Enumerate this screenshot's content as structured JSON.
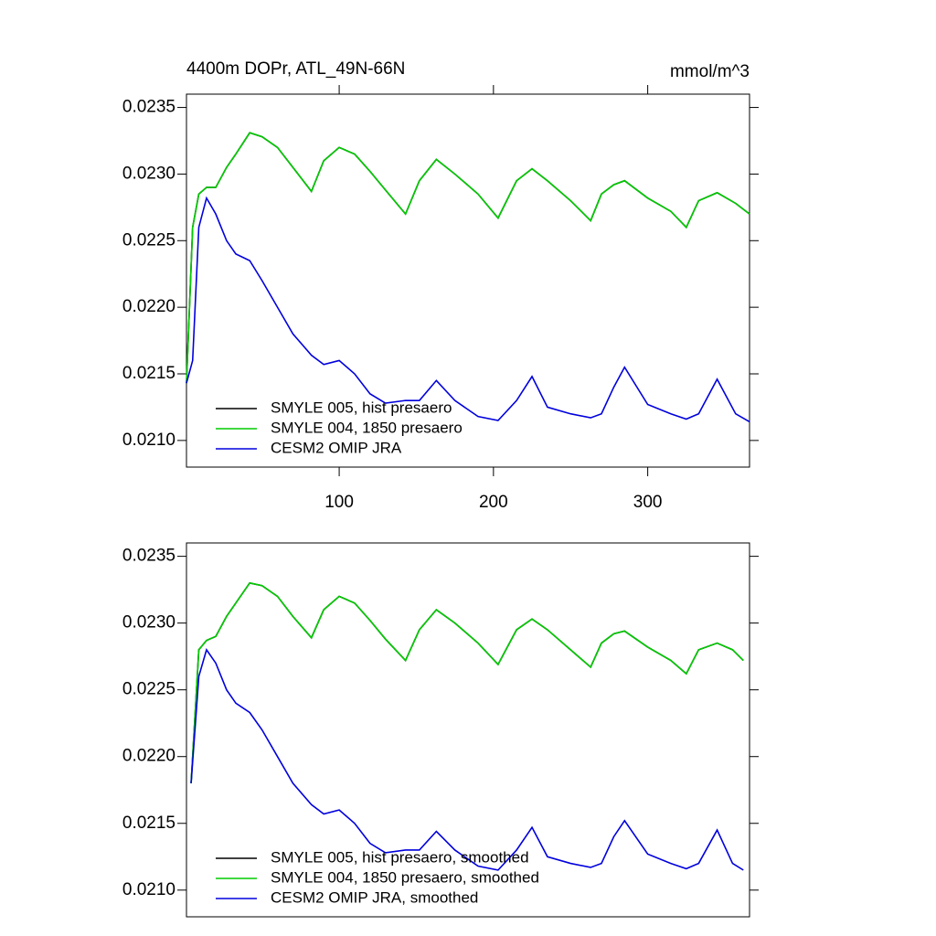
{
  "chart_data": [
    {
      "type": "line",
      "title": "4400m DOPr, ATL_49N-66N",
      "subtitle": "mmol/m^3",
      "x": [
        1,
        5,
        9,
        14,
        20,
        27,
        33,
        42,
        50,
        60,
        70,
        82,
        90,
        100,
        110,
        120,
        130,
        143,
        152,
        163,
        175,
        190,
        203,
        215,
        225,
        235,
        250,
        263,
        270,
        278,
        285,
        300,
        315,
        325,
        333,
        345,
        357,
        366
      ],
      "series": [
        {
          "name": "SMYLE 005, hist presaero",
          "color": "#000000",
          "values": [
            0.02143,
            0.0226,
            0.02285,
            0.0229,
            0.0229,
            0.02305,
            0.02315,
            0.02331,
            0.02328,
            0.0232,
            0.02305,
            0.02287,
            0.0231,
            0.0232,
            0.02315,
            0.02302,
            0.02288,
            0.0227,
            0.02295,
            0.02311,
            0.023,
            0.02285,
            0.02267,
            0.02295,
            0.02304,
            0.02295,
            0.0228,
            0.02265,
            0.02285,
            0.02292,
            0.02295,
            0.02282,
            0.02272,
            0.0226,
            0.0228,
            0.02286,
            0.02278,
            0.0227
          ]
        },
        {
          "name": "SMYLE 004, 1850 presaero",
          "color": "#00cc00",
          "values": [
            0.02143,
            0.0226,
            0.02285,
            0.0229,
            0.0229,
            0.02305,
            0.02315,
            0.02331,
            0.02328,
            0.0232,
            0.02305,
            0.02287,
            0.0231,
            0.0232,
            0.02315,
            0.02302,
            0.02288,
            0.0227,
            0.02295,
            0.02311,
            0.023,
            0.02285,
            0.02267,
            0.02295,
            0.02304,
            0.02295,
            0.0228,
            0.02265,
            0.02285,
            0.02292,
            0.02295,
            0.02282,
            0.02272,
            0.0226,
            0.0228,
            0.02286,
            0.02278,
            0.0227
          ]
        },
        {
          "name": "CESM2 OMIP JRA",
          "color": "#0000dd",
          "values": [
            0.02143,
            0.0216,
            0.0226,
            0.02282,
            0.0227,
            0.0225,
            0.0224,
            0.02235,
            0.0222,
            0.022,
            0.0218,
            0.02164,
            0.02157,
            0.0216,
            0.0215,
            0.02135,
            0.02128,
            0.0213,
            0.0213,
            0.02145,
            0.0213,
            0.02118,
            0.02115,
            0.0213,
            0.02148,
            0.02125,
            0.0212,
            0.02117,
            0.0212,
            0.0214,
            0.02155,
            0.02127,
            0.0212,
            0.02116,
            0.0212,
            0.02146,
            0.0212,
            0.02114
          ]
        }
      ],
      "xlim": [
        1,
        366
      ],
      "xticks": [
        100,
        200,
        300
      ],
      "ylim": [
        0.0208,
        0.0236
      ],
      "yticks": [
        0.0235,
        {
          "value": 0.023,
          "label": "0.0230"
        },
        0.0225,
        {
          "value": 0.022,
          "label": "0.0220"
        },
        0.0215,
        {
          "value": 0.021,
          "label": "0.0210"
        }
      ],
      "legend": "lower left"
    },
    {
      "type": "line",
      "x": [
        4,
        9,
        14,
        20,
        27,
        33,
        42,
        50,
        60,
        70,
        82,
        90,
        100,
        110,
        120,
        130,
        143,
        152,
        163,
        175,
        190,
        203,
        215,
        225,
        235,
        250,
        263,
        270,
        278,
        285,
        300,
        315,
        325,
        333,
        345,
        355,
        362
      ],
      "series": [
        {
          "name": "SMYLE 005, hist presaero, smoothed",
          "color": "#000000",
          "values": [
            0.0218,
            0.0228,
            0.02287,
            0.0229,
            0.02305,
            0.02315,
            0.0233,
            0.02328,
            0.0232,
            0.02305,
            0.02289,
            0.0231,
            0.0232,
            0.02315,
            0.02302,
            0.02288,
            0.02272,
            0.02295,
            0.0231,
            0.023,
            0.02285,
            0.02269,
            0.02295,
            0.02303,
            0.02295,
            0.0228,
            0.02267,
            0.02285,
            0.02292,
            0.02294,
            0.02282,
            0.02272,
            0.02262,
            0.0228,
            0.02285,
            0.0228,
            0.02272
          ]
        },
        {
          "name": "SMYLE 004, 1850 presaero, smoothed",
          "color": "#00cc00",
          "values": [
            0.0218,
            0.0228,
            0.02287,
            0.0229,
            0.02305,
            0.02315,
            0.0233,
            0.02328,
            0.0232,
            0.02305,
            0.02289,
            0.0231,
            0.0232,
            0.02315,
            0.02302,
            0.02288,
            0.02272,
            0.02295,
            0.0231,
            0.023,
            0.02285,
            0.02269,
            0.02295,
            0.02303,
            0.02295,
            0.0228,
            0.02267,
            0.02285,
            0.02292,
            0.02294,
            0.02282,
            0.02272,
            0.02262,
            0.0228,
            0.02285,
            0.0228,
            0.02272
          ]
        },
        {
          "name": "CESM2 OMIP JRA, smoothed",
          "color": "#0000dd",
          "values": [
            0.0218,
            0.0226,
            0.0228,
            0.0227,
            0.0225,
            0.0224,
            0.02233,
            0.0222,
            0.022,
            0.0218,
            0.02164,
            0.02157,
            0.0216,
            0.0215,
            0.02135,
            0.02128,
            0.0213,
            0.0213,
            0.02144,
            0.0213,
            0.02118,
            0.02115,
            0.0213,
            0.02147,
            0.02125,
            0.0212,
            0.02117,
            0.0212,
            0.0214,
            0.02152,
            0.02127,
            0.0212,
            0.02116,
            0.0212,
            0.02145,
            0.0212,
            0.02115
          ]
        }
      ],
      "xlim": [
        1,
        366
      ],
      "ylim": [
        0.0208,
        0.0236
      ],
      "yticks": [
        0.0235,
        {
          "value": 0.023,
          "label": "0.0230"
        },
        0.0225,
        {
          "value": 0.022,
          "label": "0.0220"
        },
        0.0215,
        {
          "value": 0.021,
          "label": "0.0210"
        }
      ],
      "legend": "lower left"
    }
  ]
}
